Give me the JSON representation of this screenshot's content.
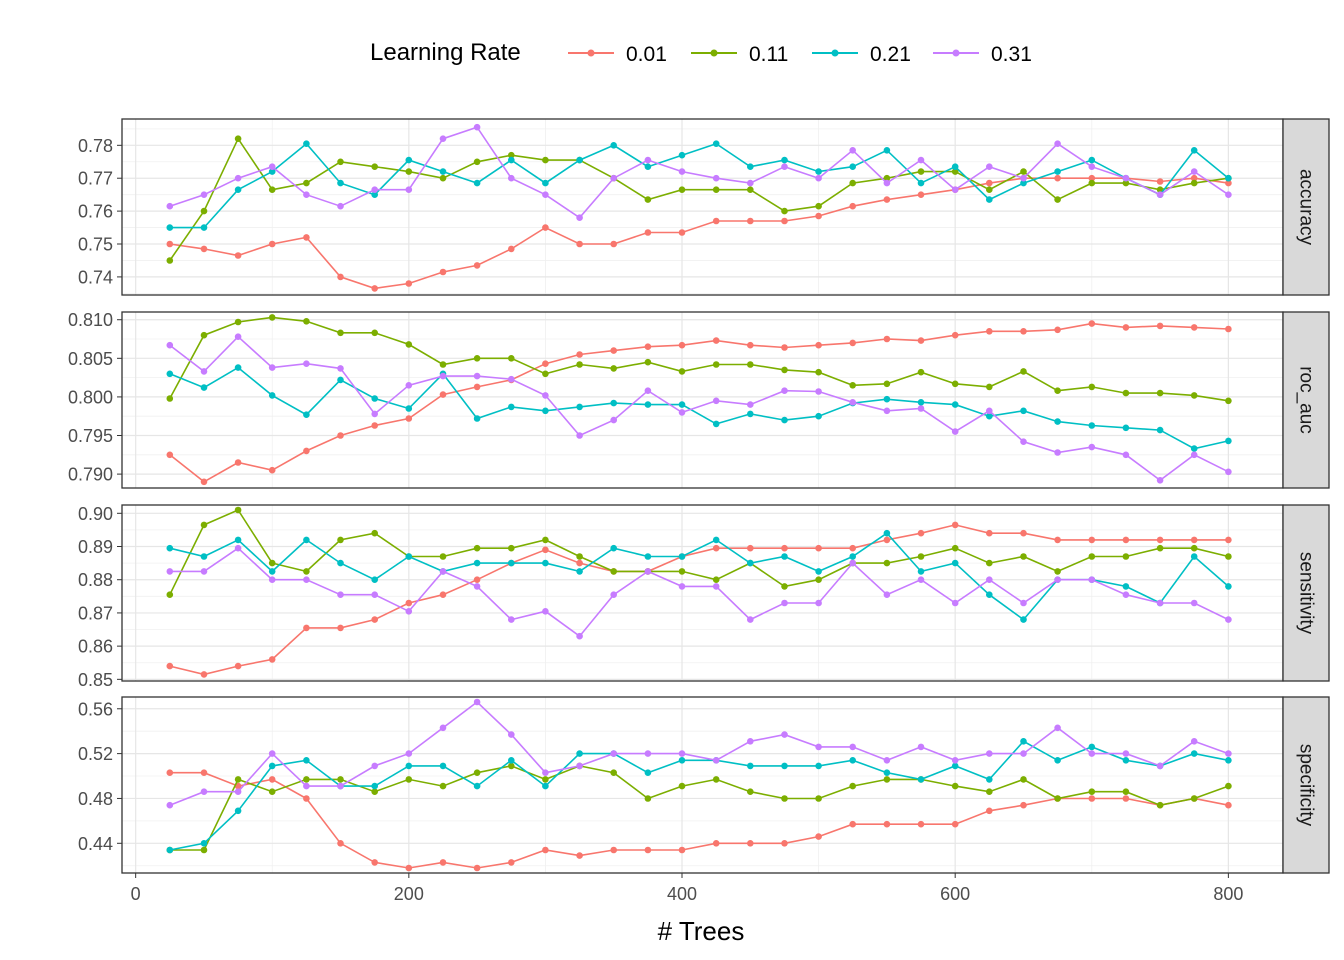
{
  "chart_data": {
    "type": "line",
    "xlabel": "# Trees",
    "ylabel": "",
    "x_ticks": [
      "0",
      "200",
      "400",
      "600",
      "800"
    ],
    "x_tick_values": [
      0,
      200,
      400,
      600,
      800
    ],
    "xlim": [
      -10,
      840
    ],
    "x": [
      25,
      50,
      75,
      100,
      125,
      150,
      175,
      200,
      225,
      250,
      275,
      300,
      325,
      350,
      375,
      400,
      425,
      450,
      475,
      500,
      525,
      550,
      575,
      600,
      625,
      650,
      675,
      700,
      725,
      750,
      775,
      800
    ],
    "legend": {
      "title": "Learning Rate",
      "position": "top",
      "entries": [
        "0.01",
        "0.11",
        "0.21",
        "0.31"
      ]
    },
    "colors": [
      "#F8766D",
      "#7CAE00",
      "#00BFC4",
      "#C77CFF"
    ],
    "grid": true,
    "facets": [
      {
        "label": "accuracy",
        "ylim": [
          0.7345,
          0.788
        ],
        "y_ticks": [
          "0.74",
          "0.75",
          "0.76",
          "0.77",
          "0.78"
        ],
        "y_tick_values": [
          0.74,
          0.75,
          0.76,
          0.77,
          0.78
        ],
        "series": [
          {
            "name": "0.01",
            "values": [
              0.75,
              0.7485,
              0.7465,
              0.75,
              0.752,
              0.74,
              0.7365,
              0.738,
              0.7415,
              0.7435,
              0.7485,
              0.755,
              0.75,
              0.75,
              0.7535,
              0.7535,
              0.757,
              0.757,
              0.757,
              0.7585,
              0.7615,
              0.7635,
              0.765,
              0.7665,
              0.7685,
              0.77,
              0.77,
              0.77,
              0.77,
              0.769,
              0.77,
              0.7685
            ]
          },
          {
            "name": "0.11",
            "values": [
              0.745,
              0.76,
              0.782,
              0.7665,
              0.7685,
              0.775,
              0.7735,
              0.772,
              0.77,
              0.775,
              0.777,
              0.7755,
              0.7755,
              0.77,
              0.7635,
              0.7665,
              0.7665,
              0.7665,
              0.76,
              0.7615,
              0.7685,
              0.77,
              0.772,
              0.772,
              0.7665,
              0.772,
              0.7635,
              0.7685,
              0.7685,
              0.7665,
              0.7685,
              0.77
            ]
          },
          {
            "name": "0.21",
            "values": [
              0.755,
              0.755,
              0.7665,
              0.772,
              0.7805,
              0.7685,
              0.765,
              0.7755,
              0.772,
              0.7685,
              0.7755,
              0.7685,
              0.7755,
              0.78,
              0.7735,
              0.777,
              0.7805,
              0.7735,
              0.7755,
              0.772,
              0.7735,
              0.7785,
              0.7685,
              0.7735,
              0.7635,
              0.7685,
              0.772,
              0.7755,
              0.77,
              0.765,
              0.7785,
              0.77
            ]
          },
          {
            "name": "0.31",
            "values": [
              0.7615,
              0.765,
              0.77,
              0.7735,
              0.765,
              0.7615,
              0.7665,
              0.7665,
              0.782,
              0.7855,
              0.77,
              0.765,
              0.758,
              0.77,
              0.7755,
              0.772,
              0.77,
              0.7685,
              0.7735,
              0.77,
              0.7785,
              0.7685,
              0.7755,
              0.7665,
              0.7735,
              0.77,
              0.7805,
              0.7735,
              0.77,
              0.765,
              0.772,
              0.765
            ]
          }
        ]
      },
      {
        "label": "roc_auc",
        "ylim": [
          0.7882,
          0.811
        ],
        "y_ticks": [
          "0.790",
          "0.795",
          "0.800",
          "0.805",
          "0.810"
        ],
        "y_tick_values": [
          0.79,
          0.795,
          0.8,
          0.805,
          0.81
        ],
        "series": [
          {
            "name": "0.01",
            "values": [
              0.7925,
              0.789,
              0.7915,
              0.7905,
              0.793,
              0.795,
              0.7963,
              0.7972,
              0.8003,
              0.8013,
              0.8022,
              0.8043,
              0.8055,
              0.806,
              0.8065,
              0.8067,
              0.8073,
              0.8067,
              0.8064,
              0.8067,
              0.807,
              0.8075,
              0.8073,
              0.808,
              0.8085,
              0.8085,
              0.8087,
              0.8095,
              0.809,
              0.8092,
              0.809,
              0.8088
            ]
          },
          {
            "name": "0.11",
            "values": [
              0.7998,
              0.808,
              0.8097,
              0.8103,
              0.8098,
              0.8083,
              0.8083,
              0.8068,
              0.8042,
              0.805,
              0.805,
              0.803,
              0.8042,
              0.8037,
              0.8045,
              0.8033,
              0.8042,
              0.8042,
              0.8035,
              0.8032,
              0.8015,
              0.8017,
              0.8032,
              0.8017,
              0.8013,
              0.8033,
              0.8008,
              0.8013,
              0.8005,
              0.8005,
              0.8002,
              0.7995
            ]
          },
          {
            "name": "0.21",
            "values": [
              0.803,
              0.8012,
              0.8038,
              0.8002,
              0.7977,
              0.8022,
              0.7998,
              0.7985,
              0.803,
              0.7972,
              0.7987,
              0.7982,
              0.7987,
              0.7992,
              0.799,
              0.799,
              0.7965,
              0.7978,
              0.797,
              0.7975,
              0.7992,
              0.7997,
              0.7993,
              0.799,
              0.7975,
              0.7982,
              0.7968,
              0.7963,
              0.796,
              0.7957,
              0.7933,
              0.7943
            ]
          },
          {
            "name": "0.31",
            "values": [
              0.8067,
              0.8033,
              0.8078,
              0.8038,
              0.8043,
              0.8037,
              0.7978,
              0.8015,
              0.8027,
              0.8027,
              0.8023,
              0.8002,
              0.795,
              0.797,
              0.8008,
              0.798,
              0.7995,
              0.799,
              0.8008,
              0.8007,
              0.7993,
              0.7982,
              0.7985,
              0.7955,
              0.7982,
              0.7942,
              0.7928,
              0.7935,
              0.7925,
              0.7892,
              0.7925,
              0.7903
            ]
          }
        ]
      },
      {
        "label": "sensitivity",
        "ylim": [
          0.8495,
          0.9025
        ],
        "y_ticks": [
          "0.85",
          "0.86",
          "0.87",
          "0.88",
          "0.89",
          "0.90"
        ],
        "y_tick_values": [
          0.85,
          0.86,
          0.87,
          0.88,
          0.89,
          0.9
        ],
        "series": [
          {
            "name": "0.01",
            "values": [
              0.854,
              0.8515,
              0.854,
              0.856,
              0.8655,
              0.8655,
              0.868,
              0.873,
              0.8755,
              0.88,
              0.885,
              0.889,
              0.885,
              0.8825,
              0.8825,
              0.887,
              0.8895,
              0.8895,
              0.8895,
              0.8895,
              0.8895,
              0.892,
              0.894,
              0.8965,
              0.894,
              0.894,
              0.892,
              0.892,
              0.892,
              0.892,
              0.892,
              0.892
            ]
          },
          {
            "name": "0.11",
            "values": [
              0.8755,
              0.8965,
              0.901,
              0.885,
              0.8825,
              0.892,
              0.894,
              0.887,
              0.887,
              0.8895,
              0.8895,
              0.892,
              0.887,
              0.8825,
              0.8825,
              0.8825,
              0.88,
              0.885,
              0.878,
              0.88,
              0.885,
              0.885,
              0.887,
              0.8895,
              0.885,
              0.887,
              0.8825,
              0.887,
              0.887,
              0.8895,
              0.8895,
              0.887
            ]
          },
          {
            "name": "0.21",
            "values": [
              0.8895,
              0.887,
              0.892,
              0.8825,
              0.892,
              0.885,
              0.88,
              0.887,
              0.8825,
              0.885,
              0.885,
              0.885,
              0.8825,
              0.8895,
              0.887,
              0.887,
              0.892,
              0.885,
              0.887,
              0.8825,
              0.887,
              0.894,
              0.8825,
              0.885,
              0.8755,
              0.868,
              0.88,
              0.88,
              0.878,
              0.873,
              0.887,
              0.878
            ]
          },
          {
            "name": "0.31",
            "values": [
              0.8825,
              0.8825,
              0.8895,
              0.88,
              0.88,
              0.8755,
              0.8755,
              0.8705,
              0.8825,
              0.878,
              0.868,
              0.8705,
              0.863,
              0.8755,
              0.8825,
              0.878,
              0.878,
              0.868,
              0.873,
              0.873,
              0.885,
              0.8755,
              0.88,
              0.873,
              0.88,
              0.873,
              0.88,
              0.88,
              0.8755,
              0.873,
              0.873,
              0.868
            ]
          }
        ]
      },
      {
        "label": "specificity",
        "ylim": [
          0.4135,
          0.5705
        ],
        "y_ticks": [
          "0.44",
          "0.48",
          "0.52",
          "0.56"
        ],
        "y_tick_values": [
          0.44,
          0.48,
          0.52,
          0.56
        ],
        "series": [
          {
            "name": "0.01",
            "values": [
              0.503,
              0.503,
              0.491,
              0.497,
              0.48,
              0.44,
              0.423,
              0.418,
              0.423,
              0.418,
              0.423,
              0.434,
              0.429,
              0.434,
              0.434,
              0.434,
              0.44,
              0.44,
              0.44,
              0.446,
              0.457,
              0.457,
              0.457,
              0.457,
              0.469,
              0.474,
              0.48,
              0.48,
              0.48,
              0.474,
              0.48,
              0.474
            ]
          },
          {
            "name": "0.11",
            "values": [
              0.434,
              0.434,
              0.497,
              0.486,
              0.497,
              0.497,
              0.486,
              0.497,
              0.491,
              0.503,
              0.509,
              0.497,
              0.509,
              0.503,
              0.48,
              0.491,
              0.497,
              0.486,
              0.48,
              0.48,
              0.491,
              0.497,
              0.497,
              0.491,
              0.486,
              0.497,
              0.48,
              0.486,
              0.486,
              0.474,
              0.48,
              0.491
            ]
          },
          {
            "name": "0.21",
            "values": [
              0.434,
              0.44,
              0.469,
              0.509,
              0.514,
              0.491,
              0.491,
              0.509,
              0.509,
              0.491,
              0.514,
              0.491,
              0.52,
              0.52,
              0.503,
              0.514,
              0.514,
              0.509,
              0.509,
              0.509,
              0.514,
              0.503,
              0.497,
              0.509,
              0.497,
              0.531,
              0.514,
              0.526,
              0.514,
              0.509,
              0.52,
              0.514
            ]
          },
          {
            "name": "0.31",
            "values": [
              0.474,
              0.486,
              0.486,
              0.52,
              0.491,
              0.491,
              0.509,
              0.52,
              0.543,
              0.566,
              0.537,
              0.503,
              0.509,
              0.52,
              0.52,
              0.52,
              0.514,
              0.531,
              0.537,
              0.526,
              0.526,
              0.514,
              0.526,
              0.514,
              0.52,
              0.52,
              0.543,
              0.52,
              0.52,
              0.509,
              0.531,
              0.52
            ]
          }
        ]
      }
    ]
  }
}
